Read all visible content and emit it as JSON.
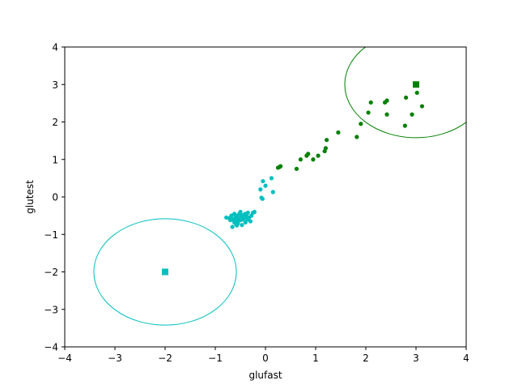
{
  "chart_data": {
    "type": "scatter",
    "title": "",
    "xlabel": "glufast",
    "ylabel": "glutest",
    "xlim": [
      -4,
      4
    ],
    "ylim": [
      -4,
      4
    ],
    "xticks": [
      -4,
      -3,
      -2,
      -1,
      0,
      1,
      2,
      3,
      4
    ],
    "yticks": [
      -4,
      -3,
      -2,
      -1,
      0,
      1,
      2,
      3,
      4
    ],
    "xtick_labels": [
      "−4",
      "−3",
      "−2",
      "−1",
      "0",
      "1",
      "2",
      "3",
      "4"
    ],
    "ytick_labels": [
      "−4",
      "−3",
      "−2",
      "−1",
      "0",
      "1",
      "2",
      "3",
      "4"
    ],
    "grid": false,
    "legend": "none",
    "series": [
      {
        "color": "#00bfbf",
        "marker": "circle",
        "points": [
          [
            -0.05,
            0.42
          ],
          [
            0.12,
            0.5
          ],
          [
            0.0,
            0.3
          ],
          [
            -0.1,
            0.2
          ],
          [
            0.15,
            0.13
          ],
          [
            -0.08,
            -0.02
          ],
          [
            -0.06,
            -0.05
          ],
          [
            -0.78,
            -0.55
          ],
          [
            -0.72,
            -0.57
          ],
          [
            -0.68,
            -0.5
          ],
          [
            -0.65,
            -0.6
          ],
          [
            -0.62,
            -0.45
          ],
          [
            -0.6,
            -0.55
          ],
          [
            -0.58,
            -0.65
          ],
          [
            -0.56,
            -0.5
          ],
          [
            -0.55,
            -0.7
          ],
          [
            -0.53,
            -0.58
          ],
          [
            -0.52,
            -0.45
          ],
          [
            -0.5,
            -0.62
          ],
          [
            -0.48,
            -0.52
          ],
          [
            -0.47,
            -0.75
          ],
          [
            -0.45,
            -0.6
          ],
          [
            -0.44,
            -0.48
          ],
          [
            -0.42,
            -0.55
          ],
          [
            -0.4,
            -0.68
          ],
          [
            -0.38,
            -0.5
          ],
          [
            -0.36,
            -0.6
          ],
          [
            -0.35,
            -0.42
          ],
          [
            -0.33,
            -0.55
          ],
          [
            -0.3,
            -0.65
          ],
          [
            -0.28,
            -0.5
          ],
          [
            -0.25,
            -0.42
          ],
          [
            -0.22,
            -0.4
          ],
          [
            -0.66,
            -0.8
          ],
          [
            -0.57,
            -0.76
          ],
          [
            -0.5,
            -0.4
          ],
          [
            -0.62,
            -0.68
          ],
          [
            -0.46,
            -0.56
          ],
          [
            -0.54,
            -0.62
          ],
          [
            -0.4,
            -0.45
          ],
          [
            -0.7,
            -0.62
          ],
          [
            -0.59,
            -0.72
          ]
        ]
      },
      {
        "color": "#008000",
        "marker": "circle",
        "points": [
          [
            0.25,
            0.78
          ],
          [
            0.3,
            0.82
          ],
          [
            0.28,
            0.8
          ],
          [
            0.62,
            0.75
          ],
          [
            0.7,
            1.0
          ],
          [
            0.82,
            1.1
          ],
          [
            0.85,
            1.15
          ],
          [
            0.95,
            1.0
          ],
          [
            1.05,
            1.1
          ],
          [
            1.18,
            1.22
          ],
          [
            1.2,
            1.3
          ],
          [
            1.22,
            1.52
          ],
          [
            1.45,
            1.72
          ],
          [
            1.82,
            1.6
          ],
          [
            1.9,
            1.95
          ],
          [
            2.05,
            2.25
          ],
          [
            2.1,
            2.52
          ],
          [
            2.38,
            2.52
          ],
          [
            2.42,
            2.57
          ],
          [
            2.42,
            2.2
          ],
          [
            2.78,
            1.9
          ],
          [
            2.8,
            2.65
          ],
          [
            2.92,
            2.2
          ],
          [
            3.02,
            2.78
          ],
          [
            3.12,
            2.42
          ]
        ]
      }
    ],
    "centers": [
      {
        "x": -2,
        "y": -2,
        "color": "#00bfbf",
        "marker": "square"
      },
      {
        "x": 3,
        "y": 3,
        "color": "#008000",
        "marker": "square"
      }
    ],
    "ellipses": [
      {
        "cx": -2,
        "cy": -2,
        "rx": 1.42,
        "ry": 1.42,
        "color": "#00bfbf"
      },
      {
        "cx": 3,
        "cy": 3,
        "rx": 1.42,
        "ry": 1.42,
        "color": "#008000"
      }
    ]
  }
}
